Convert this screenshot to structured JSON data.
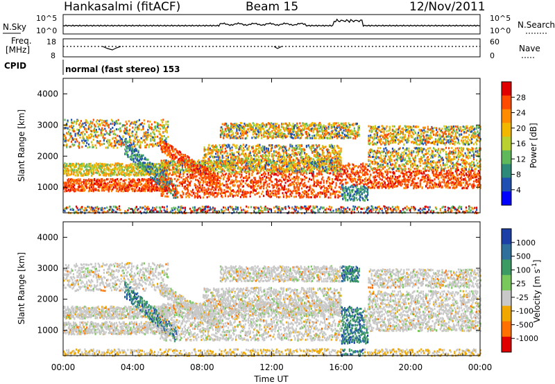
{
  "header": {
    "station": "Hankasalmi (fitACF)",
    "beam": "Beam 15",
    "date": "12/Nov/2011"
  },
  "noise_panel": {
    "left_label": "N.Sky",
    "right_label": "N.Search",
    "left_ticks": [
      "10^5",
      "10^0"
    ],
    "right_ticks": [
      "10^5",
      "10^0"
    ]
  },
  "freq_panel": {
    "left_label_line1": "Freq.",
    "left_label_line2": "[MHz]",
    "left_ticks": [
      "18",
      "8"
    ],
    "right_label": "Nave",
    "right_ticks": [
      "60",
      "0"
    ]
  },
  "cpid": {
    "label": "CPID",
    "text": "normal (fast stereo) 153"
  },
  "power_panel": {
    "ylabel": "Slant Range [km]",
    "yticks": [
      "4000",
      "3000",
      "2000",
      "1000"
    ],
    "colorbar_label": "Power [dB]",
    "colorbar_ticks": [
      "28",
      "24",
      "20",
      "16",
      "12",
      "8",
      "4"
    ],
    "colorbar_colors": [
      "#e00000",
      "#ff4a00",
      "#ff8c00",
      "#f2b800",
      "#b9d02e",
      "#5fb85a",
      "#2e8a78",
      "#1f4fb0",
      "#0000ff"
    ]
  },
  "velocity_panel": {
    "ylabel": "Slant Range [km]",
    "yticks": [
      "4000",
      "3000",
      "2000",
      "1000"
    ],
    "colorbar_label_main": "Velocity  [m s",
    "colorbar_label_sup": "-1",
    "colorbar_label_end": "]",
    "colorbar_ticks": [
      "1000",
      "500",
      "100",
      "25",
      "-25",
      "-100",
      "-500",
      "-1000"
    ],
    "colorbar_colors": [
      "#1b3fa6",
      "#2f6f9c",
      "#3c9a63",
      "#79c85b",
      "#c8c8c8",
      "#f0a800",
      "#ff7000",
      "#e00000"
    ]
  },
  "xaxis": {
    "ticks": [
      "00:00",
      "04:00",
      "08:00",
      "12:00",
      "16:00",
      "20:00",
      "00:00"
    ],
    "label": "Time UT"
  },
  "chart_data": {
    "type": "heatmap",
    "title": "Hankasalmi (fitACF)  Beam 15  12/Nov/2011",
    "xlabel": "Time UT",
    "ylabel": "Slant Range [km]",
    "xlim": [
      "00:00",
      "00:00"
    ],
    "ylim": [
      180,
      4500
    ],
    "panels": [
      "Power [dB]",
      "Velocity [m s-1]"
    ],
    "power_scale_db": [
      0,
      30
    ],
    "velocity_scale_ms": [
      -1000,
      1000
    ]
  }
}
